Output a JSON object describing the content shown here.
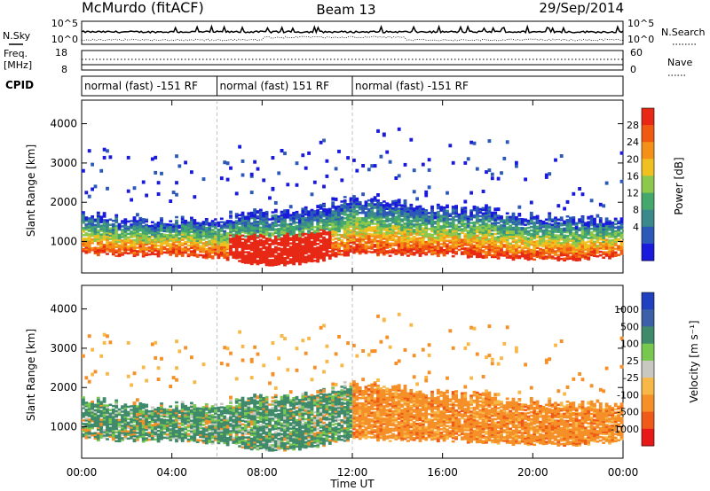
{
  "header": {
    "station": "McMurdo (fitACF)",
    "beam": "Beam 13",
    "date": "29/Sep/2014"
  },
  "top_panels": {
    "nsky_label": "N.Sky",
    "nsearch_label": "N.Search",
    "nsky_ticks": [
      "10^5",
      "10^0"
    ],
    "nsearch_ticks": [
      "10^5",
      "10^0"
    ],
    "freq_label": "Freq.",
    "freq_unit": "[MHz]",
    "freq_ticks": [
      "18",
      "8"
    ],
    "nave_label": "Nave",
    "nave_ticks": [
      "60",
      "0"
    ],
    "cpid_label": "CPID",
    "cpid_segments": [
      {
        "label": "normal (fast) -151 RF",
        "start_hour": 0,
        "end_hour": 6
      },
      {
        "label": "normal (fast) 151 RF",
        "start_hour": 6,
        "end_hour": 12
      },
      {
        "label": "normal (fast) -151 RF",
        "start_hour": 12,
        "end_hour": 24
      }
    ]
  },
  "colors": {
    "power": [
      "#1a1adc",
      "#2c58b8",
      "#3a8a8c",
      "#44a86c",
      "#8cc84c",
      "#f0c020",
      "#f49018",
      "#f05a10",
      "#e62814"
    ],
    "velocity": [
      "#e81818",
      "#f05a18",
      "#f59028",
      "#f7b848",
      "#c8c8c0",
      "#78c850",
      "#3f8a6a",
      "#3c60a8",
      "#2040c0"
    ]
  },
  "chart_data": [
    {
      "type": "heatmap",
      "name": "power",
      "ylabel": "Slant Range [km]",
      "xlabel": "",
      "colorbar_label": "Power [dB]",
      "colorbar_ticks": [
        "28",
        "24",
        "20",
        "16",
        "12",
        "8",
        "4"
      ],
      "colorbar_range": [
        0,
        32
      ],
      "ylim": [
        200,
        4600
      ],
      "y_ticks": [
        "4000",
        "3000",
        "2000",
        "1000"
      ],
      "xlim_hours": [
        0,
        24
      ],
      "x_ticks": [
        "00:00",
        "04:00",
        "08:00",
        "12:00",
        "16:00",
        "20:00",
        "00:00"
      ],
      "echo_band_km": {
        "hours": [
          0,
          2,
          4,
          6,
          8,
          10,
          12,
          14,
          16,
          18,
          20,
          22,
          24
        ],
        "lower": [
          700,
          650,
          650,
          600,
          400,
          450,
          700,
          650,
          650,
          600,
          550,
          550,
          600
        ],
        "upper": [
          1700,
          1500,
          1500,
          1600,
          1700,
          1800,
          2100,
          2000,
          1800,
          1800,
          1600,
          1600,
          1500
        ]
      },
      "grid": false
    },
    {
      "type": "heatmap",
      "name": "velocity",
      "ylabel": "Slant Range [km]",
      "xlabel": "Time UT",
      "colorbar_label": "Velocity [m s⁻¹]",
      "colorbar_ticks": [
        "1000",
        "500",
        "100",
        "25",
        "-25",
        "-100",
        "-500",
        "-1000"
      ],
      "ylim": [
        200,
        4600
      ],
      "y_ticks": [
        "4000",
        "3000",
        "2000",
        "1000"
      ],
      "xlim_hours": [
        0,
        24
      ],
      "x_ticks": [
        "00:00",
        "04:00",
        "08:00",
        "12:00",
        "16:00",
        "20:00",
        "00:00"
      ],
      "grid": false
    }
  ]
}
